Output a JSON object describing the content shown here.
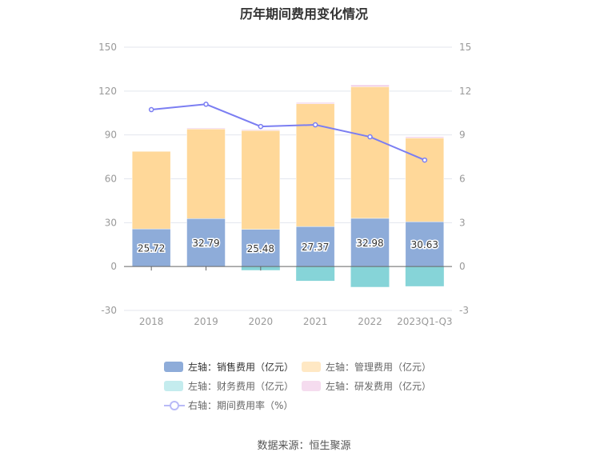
{
  "chart_data": {
    "type": "bar",
    "title": "历年期间费用变化情况",
    "categories": [
      "2018",
      "2019",
      "2020",
      "2021",
      "2022",
      "2023Q1-Q3"
    ],
    "left_axis": {
      "range": [
        -30,
        150
      ],
      "ticks": [
        "-30",
        "0",
        "30",
        "60",
        "90",
        "120",
        "150"
      ]
    },
    "right_axis": {
      "range": [
        -3,
        15
      ],
      "ticks": [
        "-3",
        "0",
        "3",
        "6",
        "9",
        "12",
        "15"
      ]
    },
    "series": [
      {
        "name": "左轴：销售费用（亿元）",
        "type": "bar",
        "axis": "left",
        "color": "#8eacd9",
        "values": [
          25.72,
          32.79,
          25.48,
          27.37,
          32.98,
          30.63
        ],
        "labels": [
          "25.72",
          "32.79",
          "25.48",
          "27.37",
          "32.98",
          "30.63"
        ]
      },
      {
        "name": "左轴：管理费用（亿元）",
        "type": "bar",
        "axis": "left",
        "color": "#ffd899",
        "values": [
          53.1,
          61.3,
          67.5,
          84.0,
          90.0,
          57.3
        ]
      },
      {
        "name": "左轴：财务费用（亿元）",
        "type": "bar",
        "axis": "left",
        "color": "#86d4d8",
        "values": [
          0,
          0,
          -2.5,
          -9.8,
          -14.0,
          -13.5
        ]
      },
      {
        "name": "左轴：研发费用（亿元）",
        "type": "bar",
        "axis": "left",
        "color": "#f0c8e6",
        "values": [
          0.2,
          0.6,
          0.6,
          0.8,
          1.2,
          0.8
        ]
      },
      {
        "name": "右轴：期间费用率（%）",
        "type": "line",
        "axis": "right",
        "color": "#7b7ef2",
        "values": [
          10.73,
          11.1,
          9.58,
          9.69,
          8.87,
          7.28
        ]
      }
    ],
    "legend_position": "bottom",
    "grid": true
  },
  "source": "数据来源：恒生聚源"
}
